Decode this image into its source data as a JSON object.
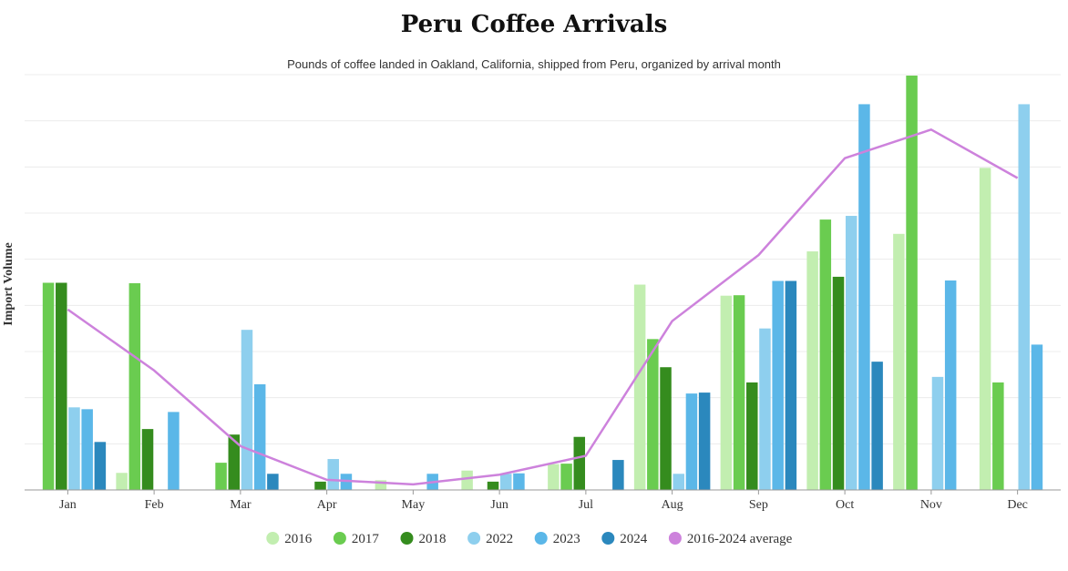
{
  "chart_data": {
    "type": "bar",
    "title": "Peru Coffee Arrivals",
    "subtitle": "Pounds of coffee landed in Oakland, California, shipped from Peru, organized by arrival month",
    "ylabel": "Import Volume",
    "xlabel": "",
    "ylim": [
      0,
      9
    ],
    "y_tick_labels": "none",
    "grid": true,
    "legend_position": "bottom",
    "categories": [
      "Jan",
      "Feb",
      "Mar",
      "Apr",
      "May",
      "Jun",
      "Jul",
      "Aug",
      "Sep",
      "Oct",
      "Nov",
      "Dec"
    ],
    "series": [
      {
        "name": "2016",
        "color": "#c2eeb0",
        "values": [
          0,
          0.37,
          0,
          0,
          0.21,
          0.42,
          0.56,
          4.45,
          4.21,
          5.17,
          5.55,
          6.98
        ]
      },
      {
        "name": "2017",
        "color": "#6acc50",
        "values": [
          4.49,
          4.48,
          0.59,
          0,
          0,
          0,
          0.57,
          3.27,
          4.22,
          5.86,
          8.98,
          2.33
        ]
      },
      {
        "name": "2018",
        "color": "#358c1e",
        "values": [
          4.49,
          1.32,
          1.2,
          0.18,
          0,
          0.18,
          1.15,
          2.66,
          2.33,
          4.62,
          0,
          0
        ]
      },
      {
        "name": "2022",
        "color": "#8ecfee",
        "values": [
          1.79,
          0,
          3.47,
          0.67,
          0,
          0.35,
          0,
          0.35,
          3.5,
          5.94,
          2.45,
          8.36
        ]
      },
      {
        "name": "2023",
        "color": "#5bb7e8",
        "values": [
          1.75,
          1.69,
          2.29,
          0.35,
          0.35,
          0.36,
          0,
          2.09,
          4.53,
          8.36,
          4.54,
          3.15
        ]
      },
      {
        "name": "2024",
        "color": "#2b88bd",
        "values": [
          1.04,
          0,
          0.35,
          0,
          0,
          0,
          0.65,
          2.11,
          4.53,
          2.78,
          0,
          0
        ]
      }
    ],
    "line_series": {
      "name": "2016-2024 average",
      "color": "#cd82dc",
      "values": [
        3.91,
        2.59,
        0.95,
        0.22,
        0.12,
        0.33,
        0.74,
        3.66,
        5.09,
        7.19,
        7.81,
        6.76
      ]
    }
  }
}
